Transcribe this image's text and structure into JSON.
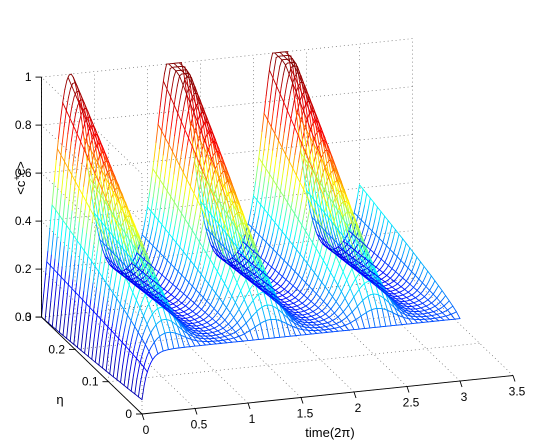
{
  "chart_data": {
    "type": "surface-mesh-3d",
    "title": "",
    "xlabel": "time(2π)",
    "ylabel": "η",
    "zlabel": "<c+c>",
    "zlabel_parts": {
      "left": "<c",
      "sup": "+",
      "right": "c>"
    },
    "xlim": [
      0,
      3.5
    ],
    "ylim": [
      0,
      0.3
    ],
    "zlim": [
      0,
      1
    ],
    "x_ticks": [
      "0",
      "0.5",
      "1",
      "1.5",
      "2",
      "2.5",
      "3",
      "3.5"
    ],
    "y_ticks": [
      "0",
      "0.1",
      "0.2",
      "0.3"
    ],
    "z_ticks": [
      "0",
      "0.2",
      "0.4",
      "0.6",
      "0.8",
      "1"
    ],
    "x_data_range": [
      0,
      3.0
    ],
    "peak_times": [
      0.25,
      1.25,
      2.25
    ],
    "peak_value_at_max_eta": 0.96,
    "grid": true,
    "colormap": "jet",
    "colormap_colors": [
      "#00008f",
      "#0000ff",
      "#00ffff",
      "#ffff00",
      "#ff0000",
      "#800000"
    ]
  }
}
